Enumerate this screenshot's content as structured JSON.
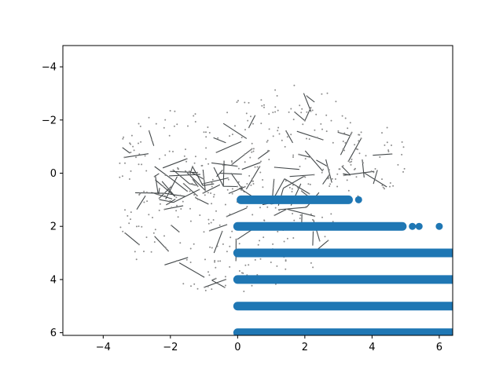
{
  "chart_data": {
    "type": "scatter",
    "title": "",
    "xlabel": "",
    "ylabel": "",
    "xlim": [
      -5.2,
      6.4
    ],
    "ylim": [
      -4.8,
      6.1
    ],
    "y_inverted": true,
    "grid": false,
    "legend": "none",
    "x_ticks": [
      -4,
      -2,
      0,
      2,
      4,
      6
    ],
    "x_tick_labels": [
      "−4",
      "−2",
      "0",
      "2",
      "4",
      "6"
    ],
    "y_ticks": [
      -4,
      -2,
      0,
      2,
      4,
      6
    ],
    "y_tick_labels": [
      "−4",
      "−2",
      "0",
      "2",
      "4",
      "6"
    ],
    "background": {
      "kind": "mesh-network",
      "edge_color": "#2f3436",
      "node_color": "#8c8c8c",
      "lobes": [
        {
          "center": [
            -0.3,
            2.0
          ],
          "radius": [
            3.2,
            2.6
          ]
        },
        {
          "center": [
            1.5,
            -1.0
          ],
          "radius": [
            2.2,
            2.4
          ]
        },
        {
          "center": [
            3.8,
            -0.5
          ],
          "radius": [
            1.4,
            1.4
          ]
        },
        {
          "center": [
            -2.0,
            -0.5
          ],
          "radius": [
            1.6,
            2.0
          ]
        }
      ]
    },
    "series": [
      {
        "marker_color": "#1f77b4",
        "bands": [
          {
            "y": 1,
            "x_min": 0.1,
            "x_max": 3.3,
            "outliers": [
              3.6
            ]
          },
          {
            "y": 2,
            "x_min": 0.0,
            "x_max": 4.9,
            "outliers": [
              5.2,
              5.4,
              6.0
            ]
          },
          {
            "y": 3,
            "x_min": 0.0,
            "x_max": 6.4,
            "outliers": []
          },
          {
            "y": 4,
            "x_min": 0.0,
            "x_max": 6.4,
            "outliers": []
          },
          {
            "y": 5,
            "x_min": 0.0,
            "x_max": 6.4,
            "outliers": []
          },
          {
            "y": 6,
            "x_min": 0.0,
            "x_max": 6.4,
            "outliers": []
          }
        ]
      }
    ]
  }
}
